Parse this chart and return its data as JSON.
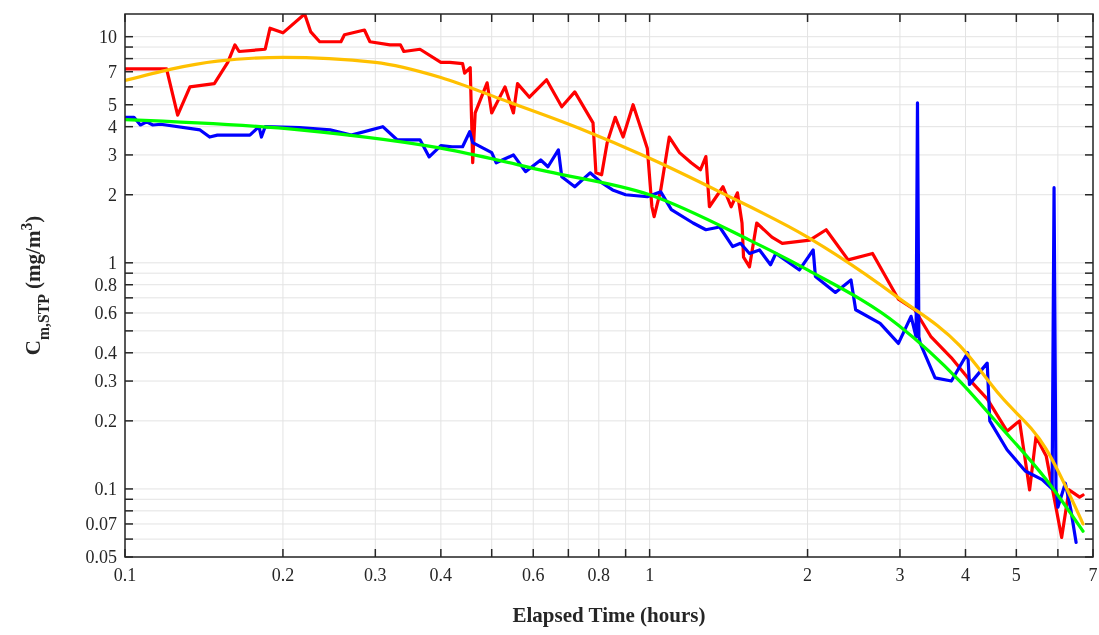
{
  "chart_data": {
    "type": "line",
    "xlabel": "Elapsed Time (hours)",
    "ylabel": "C$_{m,STP}$ (mg/m$^{3}$)",
    "log": "xy",
    "grid": true,
    "marker": "none",
    "line_style": "solid",
    "xlim": [
      0.1,
      7
    ],
    "ylim": [
      0.05,
      12.6
    ],
    "xticks": [
      0.1,
      0.2,
      0.3,
      0.4,
      {
        "value": 0.5,
        "label": null
      },
      0.6,
      {
        "value": 0.7,
        "label": null
      },
      0.8,
      {
        "value": 0.9,
        "label": null
      },
      1,
      2,
      3,
      4,
      5,
      {
        "value": 6,
        "label": null
      },
      7
    ],
    "yticks": [
      0.05,
      {
        "value": 0.06,
        "label": null
      },
      0.07,
      {
        "value": 0.08,
        "label": null
      },
      {
        "value": 0.09,
        "label": null
      },
      0.1,
      0.2,
      0.3,
      0.4,
      {
        "value": 0.5,
        "label": null
      },
      0.6,
      {
        "value": 0.7,
        "label": null
      },
      0.8,
      {
        "value": 0.9,
        "label": null
      },
      1,
      2,
      3,
      4,
      5,
      {
        "value": 6,
        "label": null
      },
      7,
      {
        "value": 8,
        "label": null
      },
      {
        "value": 9,
        "label": null
      },
      10
    ],
    "series": [
      {
        "color": "#ff0000",
        "x": [
          0.1,
          0.12,
          0.126,
          0.133,
          0.148,
          0.157,
          0.162,
          0.165,
          0.185,
          0.189,
          0.2,
          0.22,
          0.226,
          0.235,
          0.258,
          0.262,
          0.286,
          0.293,
          0.32,
          0.335,
          0.34,
          0.365,
          0.4,
          0.416,
          0.44,
          0.444,
          0.455,
          0.46,
          0.465,
          0.49,
          0.5,
          0.53,
          0.55,
          0.56,
          0.59,
          0.636,
          0.68,
          0.72,
          0.78,
          0.79,
          0.81,
          0.83,
          0.86,
          0.89,
          0.93,
          0.96,
          0.99,
          1.01,
          1.02,
          1.05,
          1.09,
          1.14,
          1.2,
          1.25,
          1.28,
          1.3,
          1.38,
          1.43,
          1.47,
          1.5,
          1.51,
          1.55,
          1.6,
          1.71,
          1.79,
          2.02,
          2.17,
          2.39,
          2.66,
          2.98,
          3.2,
          3.44,
          3.76,
          4.04,
          4.4,
          4.8,
          5.07,
          5.3,
          5.45,
          5.7,
          6.1,
          6.3,
          6.6,
          6.7
        ],
        "values": [
          7.2,
          7.2,
          4.5,
          6.0,
          6.2,
          7.7,
          9.2,
          8.6,
          8.8,
          10.9,
          10.4,
          12.6,
          10.5,
          9.5,
          9.5,
          10.2,
          10.7,
          9.5,
          9.2,
          9.2,
          8.6,
          8.8,
          7.7,
          7.7,
          7.6,
          6.9,
          7.3,
          2.77,
          4.6,
          6.25,
          4.6,
          6.0,
          4.6,
          6.2,
          5.4,
          6.45,
          4.9,
          5.7,
          4.16,
          2.5,
          2.45,
          3.4,
          4.4,
          3.6,
          5.0,
          4.0,
          3.2,
          1.77,
          1.6,
          2.1,
          3.6,
          3.07,
          2.77,
          2.58,
          2.95,
          1.77,
          2.17,
          1.77,
          2.04,
          1.5,
          1.06,
          0.96,
          1.5,
          1.3,
          1.22,
          1.26,
          1.4,
          1.03,
          1.1,
          0.69,
          0.62,
          0.47,
          0.38,
          0.31,
          0.25,
          0.18,
          0.2,
          0.099,
          0.17,
          0.14,
          0.061,
          0.099,
          0.092,
          0.094
        ]
      },
      {
        "color": "#0000ff",
        "x": [
          0.1,
          0.104,
          0.107,
          0.11,
          0.113,
          0.117,
          0.139,
          0.145,
          0.15,
          0.173,
          0.18,
          0.182,
          0.185,
          0.215,
          0.246,
          0.27,
          0.31,
          0.33,
          0.365,
          0.38,
          0.4,
          0.42,
          0.44,
          0.454,
          0.46,
          0.5,
          0.51,
          0.55,
          0.58,
          0.62,
          0.64,
          0.67,
          0.68,
          0.72,
          0.77,
          0.81,
          0.85,
          0.9,
          0.99,
          1.05,
          1.1,
          1.21,
          1.28,
          1.36,
          1.44,
          1.49,
          1.55,
          1.62,
          1.7,
          1.74,
          1.93,
          2.05,
          2.07,
          2.26,
          2.42,
          2.47,
          2.75,
          2.98,
          3.15,
          3.22,
          3.24,
          3.26,
          3.28,
          3.5,
          3.76,
          4.04,
          4.07,
          4.4,
          4.45,
          4.8,
          5.2,
          5.6,
          5.85,
          5.9,
          5.95,
          6.0,
          6.2,
          6.35,
          6.5
        ],
        "values": [
          4.4,
          4.4,
          4.07,
          4.2,
          4.07,
          4.1,
          3.87,
          3.6,
          3.67,
          3.67,
          4.0,
          3.6,
          4.0,
          3.96,
          3.87,
          3.67,
          4.0,
          3.5,
          3.5,
          2.94,
          3.3,
          3.26,
          3.26,
          3.8,
          3.4,
          3.07,
          2.77,
          3.0,
          2.53,
          2.85,
          2.66,
          3.16,
          2.4,
          2.17,
          2.5,
          2.26,
          2.1,
          2.0,
          1.96,
          2.06,
          1.72,
          1.5,
          1.4,
          1.44,
          1.18,
          1.22,
          1.1,
          1.14,
          0.98,
          1.1,
          0.93,
          1.14,
          0.87,
          0.74,
          0.84,
          0.62,
          0.54,
          0.44,
          0.58,
          0.47,
          5.1,
          0.47,
          0.44,
          0.31,
          0.3,
          0.4,
          0.29,
          0.36,
          0.2,
          0.149,
          0.12,
          0.11,
          0.1,
          2.15,
          0.1,
          0.083,
          0.106,
          0.081,
          0.058
        ]
      },
      {
        "color": "#ffc000",
        "x": [
          0.1,
          0.15,
          0.2,
          0.3,
          0.4,
          0.52,
          0.73,
          1,
          1.36,
          2,
          2.98,
          3.9,
          4.65,
          5.7,
          6.7
        ],
        "values": [
          6.4,
          7.8,
          8.1,
          7.7,
          6.6,
          5.3,
          3.96,
          2.9,
          2.06,
          1.3,
          0.7,
          0.43,
          0.26,
          0.15,
          0.07
        ]
      },
      {
        "color": "#00ff00",
        "x": [
          0.1,
          0.215,
          0.416,
          0.64,
          1,
          1.55,
          2,
          2.98,
          3.9,
          4.65,
          5.7,
          6.7
        ],
        "values": [
          4.3,
          3.87,
          3.16,
          2.53,
          2.0,
          1.26,
          0.93,
          0.53,
          0.3,
          0.19,
          0.11,
          0.065
        ]
      }
    ]
  }
}
